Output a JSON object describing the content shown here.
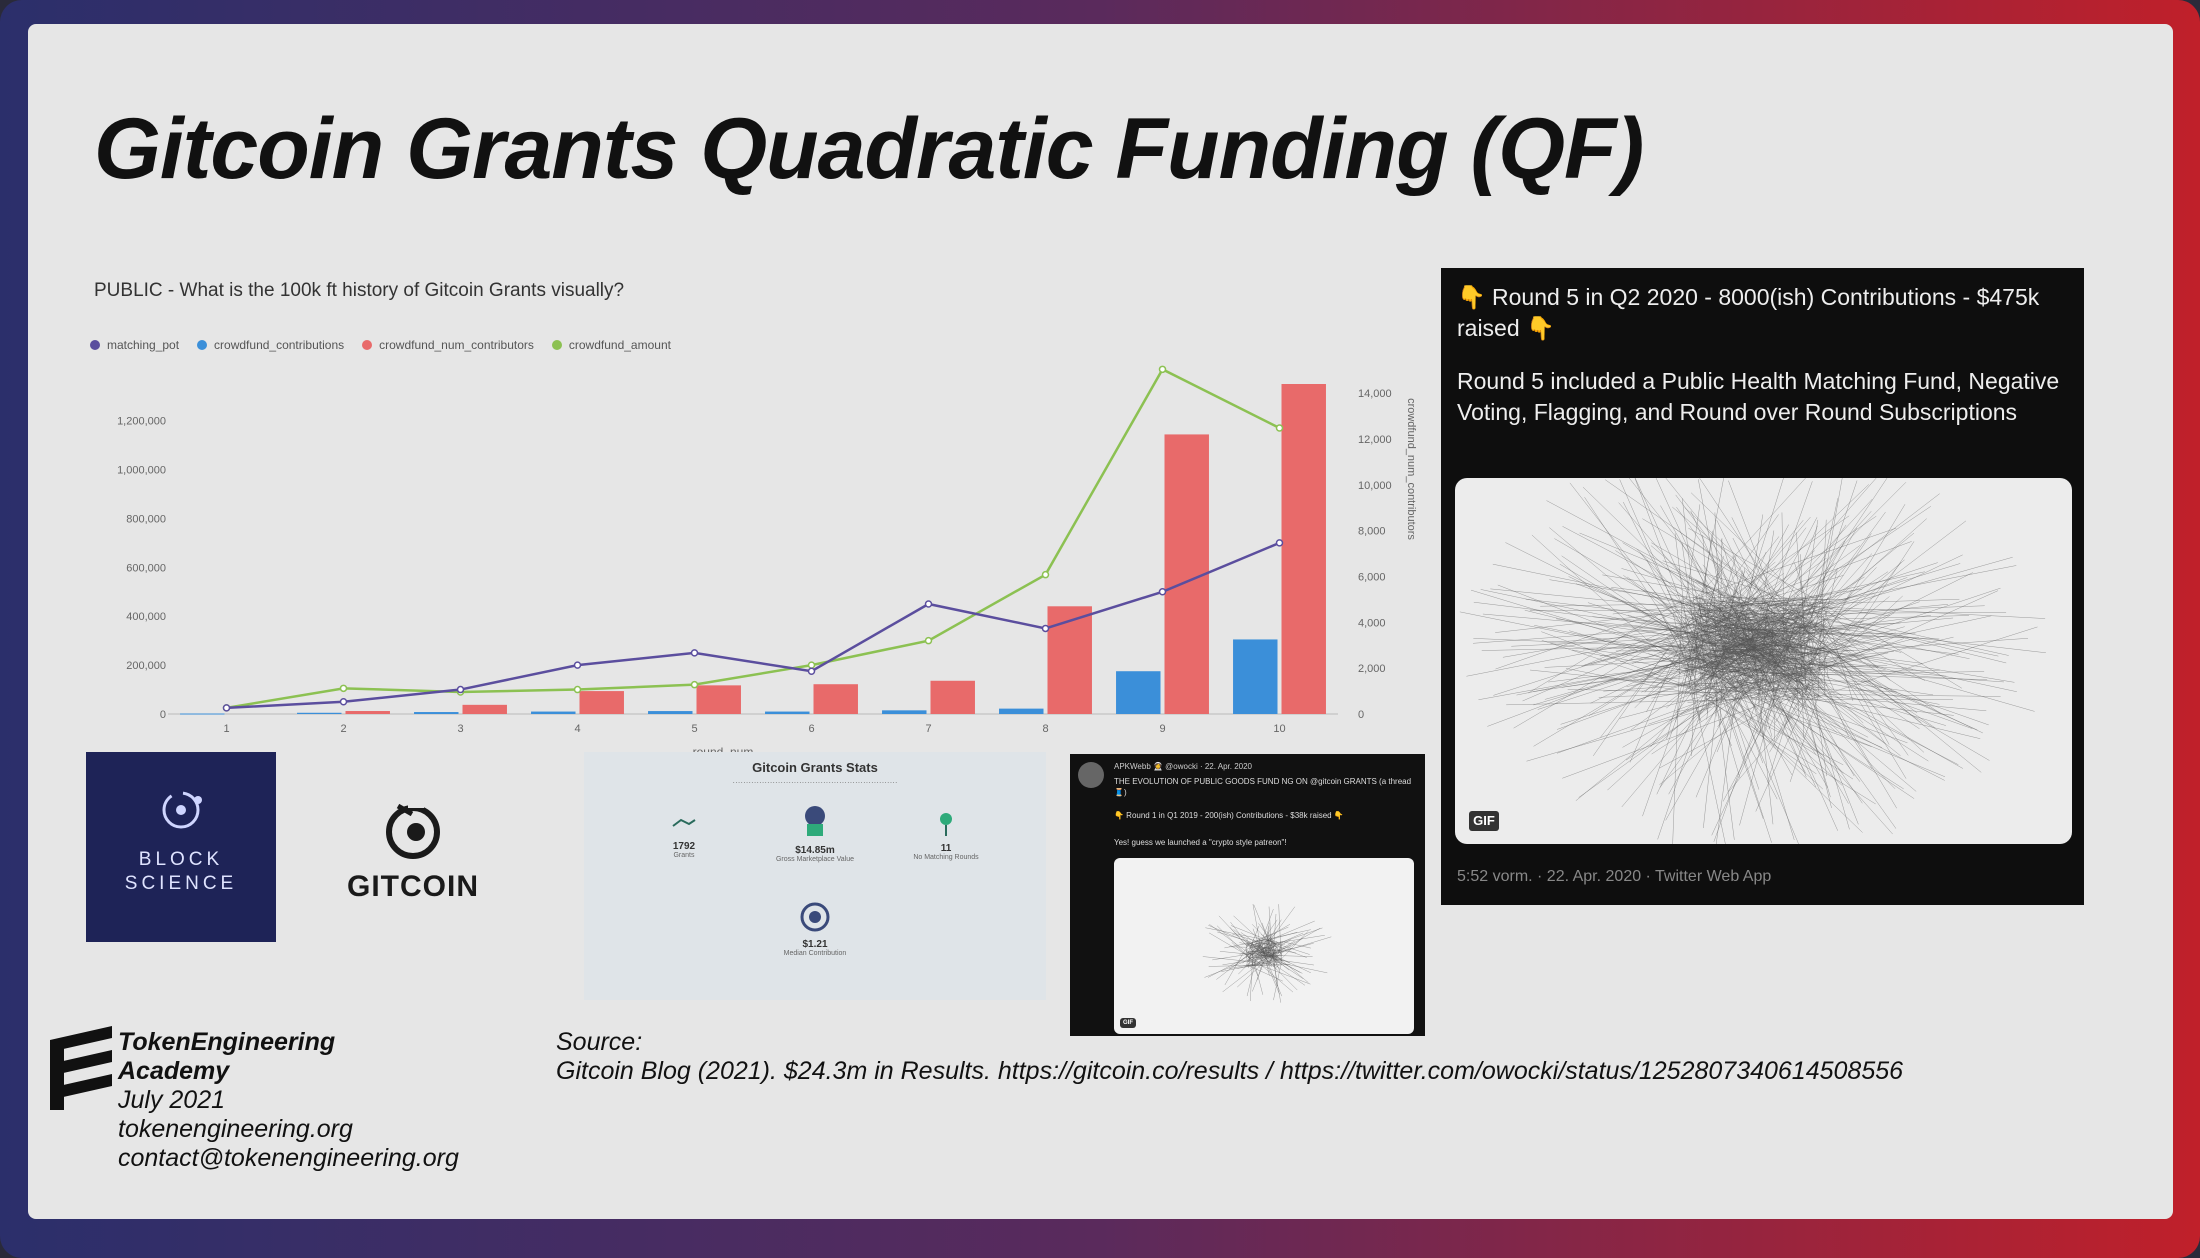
{
  "slide": {
    "title": "Gitcoin Grants Quadratic Funding (QF)"
  },
  "chart_data": {
    "type": "bar",
    "title": "PUBLIC - What is the 100k ft history of Gitcoin Grants visually?",
    "xlabel": "round_num",
    "ylabel": "",
    "y2label": "crowdfund_num_contributors",
    "categories": [
      "1",
      "2",
      "3",
      "4",
      "5",
      "6",
      "7",
      "8",
      "9",
      "10"
    ],
    "yticks": [
      "0",
      "200,000",
      "400,000",
      "600,000",
      "800,000",
      "1,000,000",
      "1,200,000"
    ],
    "y2ticks": [
      "0",
      "2,000",
      "4,000",
      "6,000",
      "8,000",
      "10,000",
      "12,000",
      "14,000"
    ],
    "ylim": [
      0,
      1350000
    ],
    "y2lim": [
      0,
      14400
    ],
    "legend": [
      "matching_pot",
      "crowdfund_contributions",
      "crowdfund_num_contributors",
      "crowdfund_amount"
    ],
    "series": [
      {
        "name": "matching_pot",
        "type": "line",
        "color": "#5b4e9e",
        "values": [
          25000,
          50000,
          100000,
          200000,
          250000,
          175000,
          450000,
          350000,
          500000,
          700000
        ]
      },
      {
        "name": "crowdfund_contributions",
        "type": "bar",
        "color": "#3b8fd9",
        "values": [
          2000,
          5000,
          8000,
          10000,
          12000,
          10000,
          15000,
          22000,
          175000,
          305000
        ]
      },
      {
        "name": "crowdfund_num_contributors",
        "type": "bar",
        "axis": "y2",
        "color": "#e86a6a",
        "values": [
          0,
          130,
          400,
          1000,
          1250,
          1300,
          1450,
          4700,
          12200,
          14400
        ]
      },
      {
        "name": "crowdfund_amount",
        "type": "line",
        "color": "#8cc152",
        "values": [
          25000,
          105000,
          90000,
          100000,
          120000,
          200000,
          300000,
          570000,
          1410000,
          1170000
        ]
      }
    ]
  },
  "logos": {
    "blockscience": "BLOCK SCIENCE",
    "gitcoin": "GITCOIN"
  },
  "stats_card": {
    "title": "Gitcoin Grants Stats",
    "items": [
      {
        "value": "1792",
        "label": "Grants"
      },
      {
        "value": "$14.85m",
        "label": "Gross Marketplace Value"
      },
      {
        "value": "11",
        "label": "No Matching Rounds"
      },
      {
        "value": "$1.21",
        "label": "Median Contribution"
      }
    ]
  },
  "small_tweet": {
    "header": "APKWebb 👩‍🚀 @owocki · 22. Apr. 2020",
    "text": "THE EVOLUTION OF PUBLIC GOODS FUND NG ON @gitcoin GRANTS (a thread 🧵)",
    "line2": "👇 Round 1 in Q1 2019 - 200(ish) Contributions - $38k raised 👇",
    "line3": "Yes! guess we launched a \"crypto style patreon\"!",
    "gif": "GIF"
  },
  "big_tweet": {
    "headline": "👇 Round 5 in Q2 2020 - 8000(ish) Contributions - $475k raised 👇",
    "body": "Round 5 included a Public Health Matching Fund, Negative Voting, Flagging, and Round over Round Subscriptions",
    "gif": "GIF",
    "meta": "5:52 vorm. · 22. Apr. 2020 · Twitter Web App"
  },
  "footer": {
    "org_line1": "TokenEngineering",
    "org_line2": "Academy",
    "date": "July 2021",
    "website": "tokenengineering.org",
    "email": "contact@tokenengineering.org",
    "source_label": "Source:",
    "source_text": "Gitcoin Blog (2021). $24.3m in Results. https://gitcoin.co/results / https://twitter.com/owocki/status/1252807340614508556"
  }
}
